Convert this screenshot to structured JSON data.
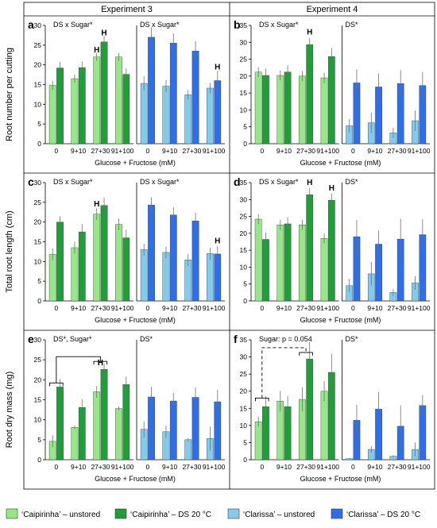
{
  "columns": [
    "Experiment 3",
    "Experiment 4"
  ],
  "row_labels": [
    "Root number per cutting",
    "Total root length (cm)",
    "Root dry mass (mg)"
  ],
  "xlabel": "Glucose + Fructose (mM)",
  "colors": {
    "caipirinha_unstored": "#99e68a",
    "caipirinha_ds20": "#1f9e3a",
    "clarissa_unstored": "#84cbeb",
    "clarissa_ds20": "#2e6ee8"
  },
  "legend": [
    {
      "label": "‘Caipirinha’ – unstored",
      "color": "#99e68a"
    },
    {
      "label": "‘Caipirinha’ – DS 20 °C",
      "color": "#1f9e3a"
    },
    {
      "label": "‘Clarissa’ – unstored",
      "color": "#84cbeb"
    },
    {
      "label": "‘Clarissa’ – DS 20 °C",
      "color": "#2e6ee8"
    }
  ],
  "chart_data": [
    {
      "type": "bar",
      "panel": "a",
      "ylim": [
        0,
        30
      ],
      "yticks": [
        0,
        5,
        10,
        15,
        20,
        25,
        30
      ],
      "categories": [
        "0",
        "9+10",
        "27+30",
        "91+100"
      ],
      "caipirinha": {
        "stats_label": "DS x Sugar*",
        "unstored": [
          14.8,
          16.5,
          22.0,
          22.0
        ],
        "unstored_err": [
          1.2,
          1.0,
          1.0,
          1.0
        ],
        "ds": [
          19.2,
          19.3,
          25.8,
          17.6
        ],
        "ds_err": [
          1.5,
          1.5,
          1.5,
          1.5
        ],
        "h_marks": [
          {
            "cat": 2,
            "bar": "unstored",
            "y": 23.2
          },
          {
            "cat": 2,
            "bar": "ds",
            "y": 27.5
          }
        ]
      },
      "clarissa": {
        "stats_label": "DS x Sugar*",
        "unstored": [
          15.3,
          14.6,
          12.4,
          14.1
        ],
        "unstored_err": [
          1.8,
          1.5,
          1.2,
          1.3
        ],
        "ds": [
          27.0,
          25.5,
          23.5,
          16.0
        ],
        "ds_err": [
          2.5,
          2.5,
          2.5,
          2.5
        ],
        "h_marks": [
          {
            "cat": 3,
            "bar": "ds",
            "y": 18.8
          }
        ]
      }
    },
    {
      "type": "bar",
      "panel": "b",
      "ylim": [
        0,
        35
      ],
      "yticks": [
        0,
        5,
        10,
        15,
        20,
        25,
        30,
        35
      ],
      "categories": [
        "0",
        "9+10",
        "27+30",
        "91+100"
      ],
      "caipirinha": {
        "stats_label": "DS x Sugar*",
        "unstored": [
          21.2,
          20.2,
          20.0,
          19.5
        ],
        "unstored_err": [
          1.5,
          1.5,
          1.5,
          1.5
        ],
        "ds": [
          20.2,
          21.2,
          29.3,
          25.8
        ],
        "ds_err": [
          2.0,
          2.0,
          2.0,
          2.5
        ],
        "h_marks": [
          {
            "cat": 2,
            "bar": "ds",
            "y": 32.3
          }
        ]
      },
      "clarissa": {
        "stats_label": "DS*",
        "unstored": [
          5.3,
          6.2,
          3.2,
          6.8
        ],
        "unstored_err": [
          2.0,
          3.0,
          1.5,
          3.0
        ],
        "ds": [
          18.0,
          16.8,
          17.8,
          17.2
        ],
        "ds_err": [
          4.0,
          4.0,
          4.0,
          4.0
        ],
        "h_marks": []
      }
    },
    {
      "type": "bar",
      "panel": "c",
      "ylim": [
        0,
        30
      ],
      "yticks": [
        0,
        5,
        10,
        15,
        20,
        25,
        30
      ],
      "categories": [
        "0",
        "9+10",
        "27+30",
        "91+100"
      ],
      "caipirinha": {
        "stats_label": "DS x Sugar*",
        "unstored": [
          11.8,
          13.5,
          22.0,
          19.4
        ],
        "unstored_err": [
          1.5,
          1.5,
          1.5,
          1.5
        ],
        "ds": [
          20.0,
          17.5,
          24.2,
          16.0
        ],
        "ds_err": [
          1.5,
          2.0,
          2.0,
          2.0
        ],
        "h_marks": [
          {
            "cat": 2,
            "bar": "unstored",
            "y": 24.0
          }
        ]
      },
      "clarissa": {
        "stats_label": "DS x Sugar*",
        "unstored": [
          13.0,
          12.3,
          10.4,
          12.0
        ],
        "unstored_err": [
          1.5,
          1.5,
          1.5,
          1.5
        ],
        "ds": [
          24.3,
          21.8,
          20.3,
          11.9
        ],
        "ds_err": [
          2.0,
          2.0,
          2.0,
          2.0
        ],
        "h_marks": [
          {
            "cat": 3,
            "bar": "ds",
            "y": 14.6
          }
        ]
      }
    },
    {
      "type": "bar",
      "panel": "d",
      "ylim": [
        0,
        35
      ],
      "yticks": [
        0,
        5,
        10,
        15,
        20,
        25,
        30,
        35
      ],
      "categories": [
        "0",
        "9+10",
        "27+30",
        "91+100"
      ],
      "caipirinha": {
        "stats_label": "DS x Sugar*",
        "unstored": [
          24.2,
          22.5,
          22.5,
          18.5
        ],
        "unstored_err": [
          1.5,
          1.5,
          1.5,
          1.5
        ],
        "ds": [
          18.2,
          22.8,
          31.4,
          29.8
        ],
        "ds_err": [
          2.0,
          2.0,
          2.0,
          2.0
        ],
        "h_marks": [
          {
            "cat": 2,
            "bar": "ds",
            "y": 34.3
          },
          {
            "cat": 3,
            "bar": "ds",
            "y": 32.7
          }
        ]
      },
      "clarissa": {
        "stats_label": "DS*",
        "unstored": [
          4.5,
          8.0,
          2.5,
          5.3
        ],
        "unstored_err": [
          2.0,
          3.5,
          1.0,
          2.0
        ],
        "ds": [
          19.0,
          16.8,
          18.3,
          19.6
        ],
        "ds_err": [
          5.0,
          4.0,
          6.0,
          4.5
        ],
        "h_marks": []
      }
    },
    {
      "type": "bar",
      "panel": "e",
      "ylim": [
        0,
        30
      ],
      "yticks": [
        0,
        5,
        10,
        15,
        20,
        25,
        30
      ],
      "categories": [
        "0",
        "9+10",
        "27+30",
        "91+100"
      ],
      "caipirinha": {
        "stats_label": "DS*, Sugar*",
        "unstored": [
          4.6,
          8.1,
          17.0,
          12.8
        ],
        "unstored_err": [
          1.5,
          0.5,
          1.5,
          0.5
        ],
        "ds": [
          18.2,
          13.1,
          22.6,
          18.8
        ],
        "ds_err": [
          2.0,
          2.0,
          1.5,
          2.0
        ],
        "h_marks": [
          {
            "cat": 2,
            "bar": "mid",
            "y": 23.6
          }
        ],
        "brackets": {
          "style": "solid",
          "from_cat": 0,
          "to_cat": 2,
          "y_low": 19.2,
          "y_high": 24.6
        }
      },
      "clarissa": {
        "stats_label": "DS*",
        "unstored": [
          7.6,
          7.0,
          5.0,
          5.3
        ],
        "unstored_err": [
          2.0,
          1.5,
          0.4,
          3.0
        ],
        "ds": [
          15.7,
          14.7,
          15.6,
          14.5
        ],
        "ds_err": [
          2.5,
          2.0,
          2.5,
          3.0
        ],
        "h_marks": []
      }
    },
    {
      "type": "bar",
      "panel": "f",
      "ylim": [
        0,
        35
      ],
      "yticks": [
        0,
        5,
        10,
        15,
        20,
        25,
        30,
        35
      ],
      "categories": [
        "0",
        "9+10",
        "27+30",
        "91+100"
      ],
      "caipirinha": {
        "stats_label": "Sugar: p = 0.054",
        "unstored": [
          11.1,
          17.1,
          17.6,
          20.0
        ],
        "unstored_err": [
          1.5,
          3.0,
          3.5,
          3.0
        ],
        "ds": [
          15.5,
          15.5,
          29.4,
          25.5
        ],
        "ds_err": [
          3.0,
          3.0,
          5.0,
          5.5
        ],
        "h_marks": [],
        "brackets": {
          "style": "dashed",
          "from_cat": 0,
          "to_cat": 2,
          "y_low": 18.0,
          "y_high": 31.3
        }
      },
      "clarissa": {
        "stats_label": "DS*",
        "unstored": [
          0.3,
          3.0,
          1.0,
          3.0
        ],
        "unstored_err": [
          0.2,
          1.0,
          0.3,
          2.0
        ],
        "ds": [
          11.5,
          14.8,
          9.8,
          15.8
        ],
        "ds_err": [
          4.5,
          5.0,
          6.0,
          3.0
        ],
        "h_marks": []
      }
    }
  ],
  "h_label": "H"
}
